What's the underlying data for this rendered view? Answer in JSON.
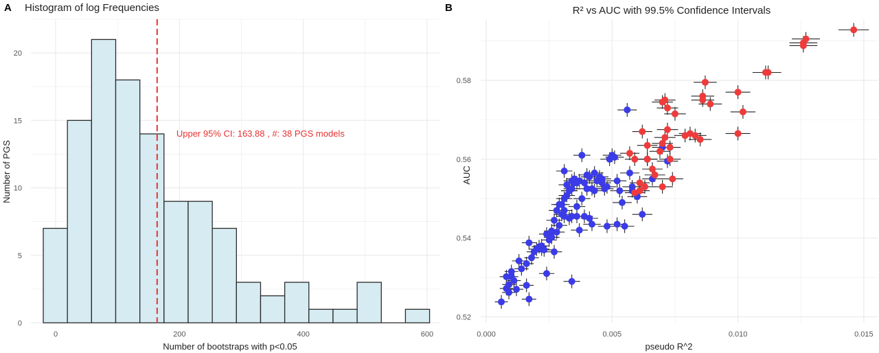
{
  "chart_data": [
    {
      "panel_label": "A",
      "type": "bar",
      "title": "Histogram of log Frequencies",
      "xlabel": "Number of bootstraps with p<0.05",
      "ylabel": "Number of PGS",
      "bin_width": 39,
      "bins": [
        {
          "start": -20,
          "end": 19,
          "count": 7
        },
        {
          "start": 19,
          "end": 58,
          "count": 15
        },
        {
          "start": 58,
          "end": 97,
          "count": 21
        },
        {
          "start": 97,
          "end": 136,
          "count": 18
        },
        {
          "start": 136,
          "end": 175,
          "count": 14
        },
        {
          "start": 175,
          "end": 214,
          "count": 9
        },
        {
          "start": 214,
          "end": 253,
          "count": 9
        },
        {
          "start": 253,
          "end": 292,
          "count": 7
        },
        {
          "start": 292,
          "end": 331,
          "count": 3
        },
        {
          "start": 331,
          "end": 370,
          "count": 2
        },
        {
          "start": 370,
          "end": 409,
          "count": 3
        },
        {
          "start": 409,
          "end": 448,
          "count": 1
        },
        {
          "start": 448,
          "end": 487,
          "count": 1
        },
        {
          "start": 487,
          "end": 526,
          "count": 3
        },
        {
          "start": 526,
          "end": 565,
          "count": 0
        },
        {
          "start": 565,
          "end": 604,
          "count": 1
        }
      ],
      "xlim": [
        -40,
        620
      ],
      "ylim": [
        0,
        22.5
      ],
      "x_ticks": [
        0,
        200,
        400,
        600
      ],
      "x_tick_labels": [
        "0",
        "200",
        "400",
        "600"
      ],
      "y_ticks": [
        0,
        5,
        10,
        15,
        20
      ],
      "y_tick_labels": [
        "0",
        "5",
        "10",
        "15",
        "20"
      ],
      "vline": {
        "x": 163.88,
        "color": "#e8312f"
      },
      "annotation": {
        "text": "Upper 95% CI: 163.88 , #: 38 PGS models",
        "x": 195,
        "y": 14
      },
      "colors": {
        "bar_fill": "#d6ebf2",
        "bar_stroke": "#2a2a2a",
        "grid": "#ebebeb"
      },
      "grid": true
    },
    {
      "panel_label": "B",
      "type": "scatter",
      "title": "R² vs AUC with 99.5% Confidence Intervals",
      "xlabel": "pseudo R^2",
      "ylabel": "AUC",
      "xlim": [
        -0.00022,
        0.01555
      ],
      "ylim": [
        0.5185,
        0.5955
      ],
      "x_ticks": [
        0.0,
        0.005,
        0.01,
        0.015
      ],
      "x_tick_labels": [
        "0.000",
        "0.005",
        "0.010",
        "0.015"
      ],
      "y_ticks": [
        0.52,
        0.54,
        0.56,
        0.58
      ],
      "y_tick_labels": [
        "0.52",
        "0.54",
        "0.56",
        "0.58"
      ],
      "colors": {
        "blue": "#3b3be8",
        "red": "#ee3b3b",
        "errorbar": "#222222",
        "grid": "#ebebeb"
      },
      "grid": true,
      "series": [
        {
          "color_key": "blue",
          "points": [
            [
              0.0006,
              0.5238
            ],
            [
              0.0008,
              0.5272
            ],
            [
              0.0009,
              0.5282
            ],
            [
              0.0009,
              0.5262
            ],
            [
              0.001,
              0.5302
            ],
            [
              0.0011,
              0.5292
            ],
            [
              0.0012,
              0.527
            ],
            [
              0.0008,
              0.5302
            ],
            [
              0.001,
              0.5315
            ],
            [
              0.0013,
              0.5342
            ],
            [
              0.0014,
              0.5322
            ],
            [
              0.0016,
              0.528
            ],
            [
              0.0017,
              0.5245
            ],
            [
              0.0016,
              0.5335
            ],
            [
              0.0018,
              0.535
            ],
            [
              0.0019,
              0.5365
            ],
            [
              0.0017,
              0.5388
            ],
            [
              0.002,
              0.5372
            ],
            [
              0.0021,
              0.5378
            ],
            [
              0.0022,
              0.5372
            ],
            [
              0.0023,
              0.537
            ],
            [
              0.0024,
              0.531
            ],
            [
              0.0025,
              0.5395
            ],
            [
              0.0026,
              0.5402
            ],
            [
              0.0026,
              0.5418
            ],
            [
              0.0027,
              0.5365
            ],
            [
              0.0027,
              0.5445
            ],
            [
              0.0028,
              0.547
            ],
            [
              0.0029,
              0.5432
            ],
            [
              0.003,
              0.546
            ],
            [
              0.003,
              0.5485
            ],
            [
              0.0031,
              0.55
            ],
            [
              0.0031,
              0.547
            ],
            [
              0.0032,
              0.5508
            ],
            [
              0.0032,
              0.5535
            ],
            [
              0.0033,
              0.545
            ],
            [
              0.0033,
              0.552
            ],
            [
              0.0034,
              0.5545
            ],
            [
              0.0035,
              0.554
            ],
            [
              0.0035,
              0.555
            ],
            [
              0.0036,
              0.548
            ],
            [
              0.0036,
              0.5455
            ],
            [
              0.0037,
              0.5545
            ],
            [
              0.0038,
              0.55
            ],
            [
              0.0038,
              0.561
            ],
            [
              0.0039,
              0.5455
            ],
            [
              0.0039,
              0.554
            ],
            [
              0.004,
              0.5525
            ],
            [
              0.004,
              0.556
            ],
            [
              0.0041,
              0.5555
            ],
            [
              0.0041,
              0.545
            ],
            [
              0.0042,
              0.5525
            ],
            [
              0.0043,
              0.552
            ],
            [
              0.0044,
              0.5545
            ],
            [
              0.0045,
              0.5555
            ],
            [
              0.0046,
              0.555
            ],
            [
              0.0047,
              0.5525
            ],
            [
              0.0048,
              0.553
            ],
            [
              0.0049,
              0.56
            ],
            [
              0.005,
              0.561
            ],
            [
              0.0051,
              0.5605
            ],
            [
              0.0052,
              0.5545
            ],
            [
              0.0053,
              0.552
            ],
            [
              0.0054,
              0.549
            ],
            [
              0.0055,
              0.543
            ],
            [
              0.0056,
              0.5725
            ],
            [
              0.0057,
              0.5565
            ],
            [
              0.0058,
              0.553
            ],
            [
              0.0058,
              0.552
            ],
            [
              0.006,
              0.5505
            ],
            [
              0.0062,
              0.546
            ],
            [
              0.0064,
              0.56
            ],
            [
              0.0066,
              0.555
            ],
            [
              0.007,
              0.563
            ],
            [
              0.0072,
              0.5595
            ],
            [
              0.0052,
              0.5435
            ],
            [
              0.0048,
              0.543
            ],
            [
              0.0046,
              0.554
            ],
            [
              0.0034,
              0.5525
            ],
            [
              0.0029,
              0.5485
            ],
            [
              0.0028,
              0.5415
            ],
            [
              0.0024,
              0.541
            ],
            [
              0.0022,
              0.538
            ],
            [
              0.0037,
              0.542
            ],
            [
              0.0042,
              0.5435
            ],
            [
              0.0033,
              0.552
            ],
            [
              0.0031,
              0.557
            ],
            [
              0.0034,
              0.5455
            ],
            [
              0.0031,
              0.5455
            ],
            [
              0.0036,
              0.554
            ],
            [
              0.0043,
              0.5565
            ],
            [
              0.0034,
              0.529
            ]
          ]
        },
        {
          "color_key": "red",
          "points": [
            [
              0.0146,
              0.5928
            ],
            [
              0.0127,
              0.5905
            ],
            [
              0.0126,
              0.5895
            ],
            [
              0.0126,
              0.5888
            ],
            [
              0.0112,
              0.582
            ],
            [
              0.0111,
              0.582
            ],
            [
              0.0087,
              0.5795
            ],
            [
              0.01,
              0.577
            ],
            [
              0.0086,
              0.575
            ],
            [
              0.0086,
              0.576
            ],
            [
              0.0071,
              0.575
            ],
            [
              0.007,
              0.5745
            ],
            [
              0.0072,
              0.573
            ],
            [
              0.0075,
              0.5715
            ],
            [
              0.0089,
              0.574
            ],
            [
              0.0102,
              0.572
            ],
            [
              0.0062,
              0.567
            ],
            [
              0.0072,
              0.5675
            ],
            [
              0.0071,
              0.5655
            ],
            [
              0.007,
              0.564
            ],
            [
              0.0073,
              0.563
            ],
            [
              0.0079,
              0.566
            ],
            [
              0.0081,
              0.5665
            ],
            [
              0.0083,
              0.566
            ],
            [
              0.0085,
              0.565
            ],
            [
              0.01,
              0.5665
            ],
            [
              0.0057,
              0.5615
            ],
            [
              0.0059,
              0.56
            ],
            [
              0.0064,
              0.56
            ],
            [
              0.0066,
              0.5575
            ],
            [
              0.0073,
              0.56
            ],
            [
              0.007,
              0.553
            ],
            [
              0.0074,
              0.555
            ],
            [
              0.0067,
              0.556
            ],
            [
              0.0061,
              0.554
            ],
            [
              0.0063,
              0.553
            ],
            [
              0.0061,
              0.552
            ],
            [
              0.0059,
              0.5515
            ],
            [
              0.0064,
              0.5635
            ],
            [
              0.0069,
              0.562
            ]
          ]
        }
      ]
    }
  ]
}
